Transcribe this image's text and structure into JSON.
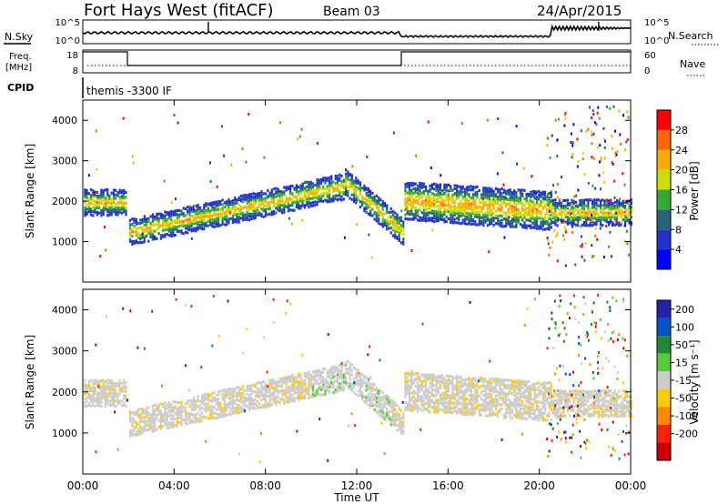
{
  "header": {
    "radar": "Fort Hays West (fitACF)",
    "beam": "Beam 03",
    "date": "24/Apr/2015"
  },
  "noise_panel": {
    "left_label": "N.Sky",
    "right_label": "N.Search",
    "left_ticks": [
      "10^5",
      "10^0"
    ],
    "right_ticks": [
      "10^5",
      "10^0"
    ]
  },
  "freq_panel": {
    "left_label": "Freq.",
    "left_unit": "[MHz]",
    "right_label": "Nave",
    "left_ticks": [
      "18",
      "8"
    ],
    "right_ticks": [
      "60",
      "0"
    ]
  },
  "cpid_panel": {
    "label": "CPID",
    "program": "themis -3300 IF"
  },
  "chart_data": [
    {
      "type": "heatmap",
      "name": "power",
      "ylabel": "Slant Range [km]",
      "yticks": [
        "1000",
        "2000",
        "3000",
        "4000"
      ],
      "ylim": [
        0,
        4500
      ],
      "colorbar": {
        "label": "Power [dB]",
        "ticks": [
          "4",
          "8",
          "12",
          "16",
          "20",
          "24",
          "28"
        ],
        "colors": [
          "#0000ff",
          "#2233cc",
          "#226677",
          "#33aa33",
          "#ccdd00",
          "#ffaa00",
          "#ff6600",
          "#ff0000"
        ]
      }
    },
    {
      "type": "heatmap",
      "name": "velocity",
      "ylabel": "Slant Range [km]",
      "yticks": [
        "1000",
        "2000",
        "3000",
        "4000"
      ],
      "ylim": [
        0,
        4500
      ],
      "colorbar": {
        "label": "Velocity [m s⁻¹]",
        "ticks": [
          "200",
          "100",
          "50",
          "15",
          "-15",
          "-50",
          "-100",
          "-200"
        ],
        "colors": [
          "#2222aa",
          "#0055cc",
          "#228833",
          "#55cc33",
          "#cccccc",
          "#ffcc00",
          "#ff8800",
          "#ff2200",
          "#cc0000"
        ]
      }
    }
  ],
  "x_axis": {
    "label": "Time UT",
    "ticks": [
      "00:00",
      "04:00",
      "08:00",
      "12:00",
      "16:00",
      "20:00",
      "00:00"
    ]
  }
}
